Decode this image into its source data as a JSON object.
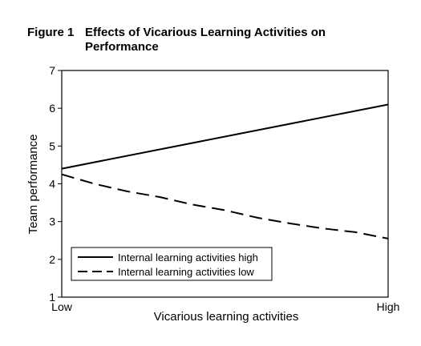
{
  "figure": {
    "number": "Figure 1",
    "title": "Effects of Vicarious Learning Activities on Performance"
  },
  "chart_data": {
    "type": "line",
    "title": "Effects of Vicarious Learning Activities on Performance",
    "xlabel": "Vicarious learning activities",
    "ylabel": "Team performance",
    "categories": [
      "Low",
      "High"
    ],
    "ylim": [
      1,
      7
    ],
    "yticks": [
      1,
      2,
      3,
      4,
      5,
      6,
      7
    ],
    "grid": false,
    "legend_position": "bottom-left",
    "series": [
      {
        "name": "Internal learning activities high",
        "style": "solid",
        "x": [
          0,
          1
        ],
        "y": [
          4.4,
          6.1
        ]
      },
      {
        "name": "Internal learning activities low",
        "style": "dashed",
        "x": [
          0,
          0.1,
          0.2,
          0.3,
          0.4,
          0.5,
          0.6,
          0.7,
          0.8,
          0.9,
          1.0
        ],
        "y": [
          4.25,
          4.0,
          3.8,
          3.65,
          3.45,
          3.3,
          3.1,
          2.95,
          2.82,
          2.72,
          2.55
        ]
      }
    ]
  }
}
